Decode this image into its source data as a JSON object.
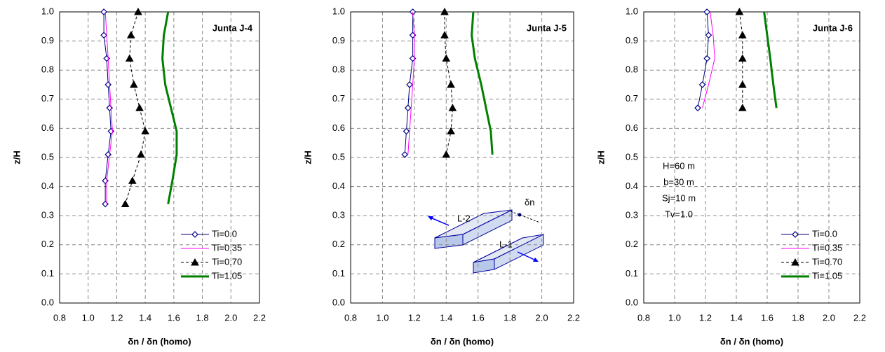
{
  "chart_data": [
    {
      "type": "line",
      "title": "Junta J-4",
      "xlabel": "δn / δn (homo)",
      "ylabel": "z/H",
      "xlim": [
        0.8,
        2.2
      ],
      "ylim": [
        0,
        1
      ],
      "xticks": [
        0.8,
        {
          "value": 1,
          "label": "1.0"
        },
        1.2,
        1.4,
        1.6,
        1.8,
        {
          "value": 2,
          "label": "2.0"
        },
        2.2
      ],
      "yticks": [
        {
          "value": 0,
          "label": "0.0"
        },
        0.1,
        0.2,
        0.3,
        0.4,
        0.5,
        0.6,
        0.7,
        0.8,
        0.9,
        {
          "value": 1,
          "label": "1.0"
        }
      ],
      "grid": true,
      "legend": "lower right",
      "series": [
        {
          "name": "Ti=0.0",
          "color": "#000080",
          "marker": "diamond",
          "linestyle": "solid",
          "x": [
            1.11,
            1.11,
            1.13,
            1.14,
            1.15,
            1.16,
            1.14,
            1.12,
            1.12
          ],
          "y": [
            1.0,
            0.92,
            0.84,
            0.75,
            0.67,
            0.59,
            0.51,
            0.42,
            0.34
          ]
        },
        {
          "name": "Ti=0.35",
          "color": "#ff00ff",
          "marker": null,
          "linestyle": "solid",
          "x": [
            1.12,
            1.13,
            1.14,
            1.15,
            1.16,
            1.17,
            1.15,
            1.13,
            1.13
          ],
          "y": [
            1.0,
            0.92,
            0.84,
            0.75,
            0.67,
            0.59,
            0.51,
            0.42,
            0.34
          ]
        },
        {
          "name": "Ti=0.70",
          "color": "#000000",
          "marker": "triangle",
          "linestyle": "dashed",
          "x": [
            1.35,
            1.3,
            1.29,
            1.32,
            1.36,
            1.4,
            1.37,
            1.31,
            1.26
          ],
          "y": [
            1.0,
            0.92,
            0.84,
            0.75,
            0.67,
            0.59,
            0.51,
            0.42,
            0.34
          ]
        },
        {
          "name": "Ti=1.05",
          "color": "#008000",
          "marker": null,
          "linestyle": "bold",
          "x": [
            1.56,
            1.53,
            1.52,
            1.54,
            1.58,
            1.62,
            1.62,
            1.59,
            1.56
          ],
          "y": [
            1.0,
            0.92,
            0.84,
            0.75,
            0.67,
            0.59,
            0.51,
            0.42,
            0.34
          ]
        }
      ]
    },
    {
      "type": "line",
      "title": "Junta J-5",
      "xlabel": "δn / δn (homo)",
      "ylabel": "z/H",
      "xlim": [
        0.8,
        2.2
      ],
      "ylim": [
        0,
        1
      ],
      "xticks": [
        0.8,
        {
          "value": 1,
          "label": "1.0"
        },
        1.2,
        1.4,
        1.6,
        1.8,
        {
          "value": 2,
          "label": "2.0"
        },
        2.2
      ],
      "yticks": [
        {
          "value": 0,
          "label": "0.0"
        },
        0.1,
        0.2,
        0.3,
        0.4,
        0.5,
        0.6,
        0.7,
        0.8,
        0.9,
        {
          "value": 1,
          "label": "1.0"
        }
      ],
      "grid": true,
      "diagram_labels": [
        "L-2",
        "L-1",
        "δn"
      ],
      "series": [
        {
          "color": "#000080",
          "marker": "diamond",
          "linestyle": "solid",
          "x": [
            1.19,
            1.19,
            1.19,
            1.17,
            1.16,
            1.15,
            1.14
          ],
          "y": [
            1.0,
            0.92,
            0.84,
            0.75,
            0.67,
            0.59,
            0.51
          ]
        },
        {
          "color": "#ff00ff",
          "marker": null,
          "linestyle": "solid",
          "x": [
            1.19,
            1.2,
            1.2,
            1.19,
            1.18,
            1.17,
            1.16
          ],
          "y": [
            1.0,
            0.92,
            0.84,
            0.75,
            0.67,
            0.59,
            0.51
          ]
        },
        {
          "color": "#000000",
          "marker": "triangle",
          "linestyle": "dashed",
          "x": [
            1.39,
            1.39,
            1.4,
            1.43,
            1.44,
            1.43,
            1.4
          ],
          "y": [
            1.0,
            0.92,
            0.84,
            0.75,
            0.67,
            0.59,
            0.51
          ]
        },
        {
          "color": "#008000",
          "marker": null,
          "linestyle": "bold",
          "x": [
            1.57,
            1.56,
            1.58,
            1.62,
            1.65,
            1.68,
            1.69
          ],
          "y": [
            1.0,
            0.92,
            0.84,
            0.75,
            0.67,
            0.59,
            0.51
          ]
        }
      ]
    },
    {
      "type": "line",
      "title": "Junta J-6",
      "xlabel": "δn / δn (homo)",
      "ylabel": "z/H",
      "xlim": [
        0.8,
        2.2
      ],
      "ylim": [
        0,
        1
      ],
      "xticks": [
        0.8,
        {
          "value": 1,
          "label": "1.0"
        },
        1.2,
        1.4,
        1.6,
        1.8,
        {
          "value": 2,
          "label": "2.0"
        },
        2.2
      ],
      "yticks": [
        {
          "value": 0,
          "label": "0.0"
        },
        0.1,
        0.2,
        0.3,
        0.4,
        0.5,
        0.6,
        0.7,
        0.8,
        0.9,
        {
          "value": 1,
          "label": "1.0"
        }
      ],
      "grid": true,
      "legend": "lower right",
      "annotations": [
        "H=60 m",
        "b=30 m",
        "Sj=10 m",
        "Tv=1.0"
      ],
      "series": [
        {
          "name": "Ti=0.0",
          "color": "#000080",
          "marker": "diamond",
          "linestyle": "solid",
          "x": [
            1.21,
            1.22,
            1.21,
            1.18,
            1.15
          ],
          "y": [
            1.0,
            0.92,
            0.84,
            0.75,
            0.67
          ]
        },
        {
          "name": "Ti=0.35",
          "color": "#ff00ff",
          "marker": null,
          "linestyle": "solid",
          "x": [
            1.23,
            1.25,
            1.26,
            1.22,
            1.18
          ],
          "y": [
            1.0,
            0.92,
            0.84,
            0.75,
            0.67
          ]
        },
        {
          "name": "Ti=0.70",
          "color": "#000000",
          "marker": "triangle",
          "linestyle": "dashed",
          "x": [
            1.42,
            1.44,
            1.44,
            1.44,
            1.44
          ],
          "y": [
            1.0,
            0.92,
            0.84,
            0.75,
            0.67
          ]
        },
        {
          "name": "Ti=1.05",
          "color": "#008000",
          "marker": null,
          "linestyle": "bold",
          "x": [
            1.58,
            1.6,
            1.62,
            1.64,
            1.66
          ],
          "y": [
            1.0,
            0.92,
            0.84,
            0.75,
            0.67
          ]
        }
      ]
    }
  ]
}
